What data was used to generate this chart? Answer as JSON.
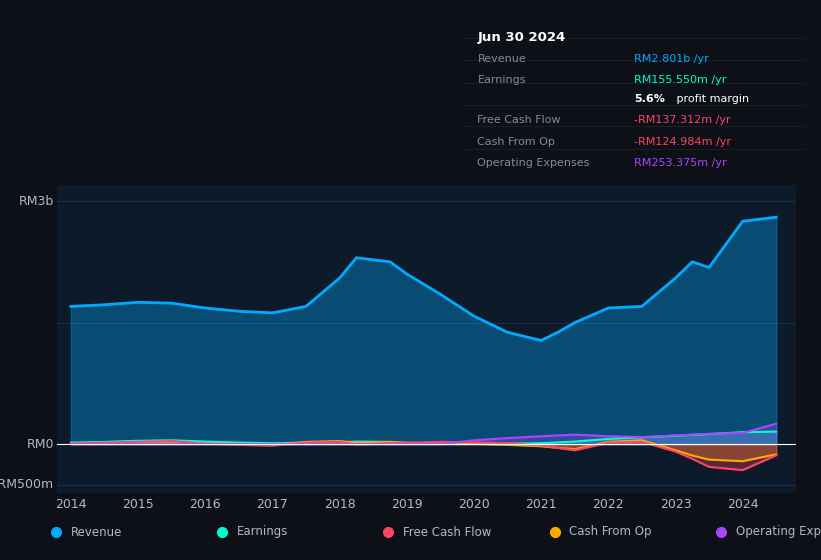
{
  "background_color": "#0d1117",
  "plot_bg_color": "#0d1a2a",
  "y_label_top": "RM3b",
  "y_label_bottom": "-RM500m",
  "y_label_zero": "RM0",
  "ylim": [
    -600,
    3200
  ],
  "years": [
    2014,
    2014.5,
    2015,
    2015.5,
    2016,
    2016.5,
    2017,
    2017.5,
    2018,
    2018.25,
    2018.75,
    2019,
    2019.5,
    2020,
    2020.5,
    2021,
    2021.25,
    2021.5,
    2022,
    2022.5,
    2023,
    2023.25,
    2023.5,
    2024,
    2024.5
  ],
  "revenue": [
    1700,
    1720,
    1750,
    1740,
    1680,
    1640,
    1620,
    1700,
    2050,
    2300,
    2250,
    2100,
    1850,
    1580,
    1380,
    1280,
    1380,
    1500,
    1680,
    1700,
    2050,
    2250,
    2180,
    2750,
    2801
  ],
  "earnings": [
    20,
    28,
    42,
    48,
    32,
    20,
    12,
    18,
    22,
    32,
    28,
    12,
    8,
    4,
    8,
    12,
    22,
    32,
    65,
    85,
    105,
    115,
    125,
    148,
    155
  ],
  "free_cash_flow": [
    8,
    18,
    28,
    38,
    5,
    -8,
    -18,
    18,
    28,
    -5,
    12,
    18,
    28,
    22,
    12,
    -15,
    -45,
    -75,
    18,
    28,
    -90,
    -180,
    -280,
    -320,
    -137
  ],
  "cash_from_op": [
    5,
    10,
    18,
    28,
    8,
    2,
    -8,
    28,
    38,
    18,
    28,
    18,
    8,
    5,
    -8,
    -25,
    -45,
    -62,
    28,
    48,
    -75,
    -140,
    -190,
    -210,
    -125
  ],
  "operating_expenses": [
    0,
    0,
    0,
    0,
    0,
    0,
    0,
    0,
    0,
    0,
    0,
    0,
    0,
    48,
    75,
    98,
    108,
    118,
    98,
    88,
    108,
    118,
    128,
    138,
    253
  ],
  "revenue_color": "#00aaff",
  "earnings_color": "#00ffcc",
  "free_cash_flow_color": "#ff4466",
  "cash_from_op_color": "#ffaa00",
  "operating_expenses_color": "#aa44ff",
  "revenue_fill_alpha": 0.35,
  "other_fill_alpha": 0.3,
  "grid_color": "#1e3a5f",
  "zero_line_color": "#ffffff",
  "text_color": "#aabbcc",
  "info_box": {
    "title": "Jun 30 2024",
    "rows": [
      {
        "label": "Revenue",
        "value": "RM2.801b /yr",
        "value_color": "#00aaff"
      },
      {
        "label": "Earnings",
        "value": "RM155.550m /yr",
        "value_color": "#00ffcc"
      },
      {
        "label": "",
        "value": "5.6% profit margin",
        "value_color": "#ffffff"
      },
      {
        "label": "Free Cash Flow",
        "value": "-RM137.312m /yr",
        "value_color": "#ff4466"
      },
      {
        "label": "Cash From Op",
        "value": "-RM124.984m /yr",
        "value_color": "#ff4466"
      },
      {
        "label": "Operating Expenses",
        "value": "RM253.375m /yr",
        "value_color": "#aa44ff"
      }
    ]
  },
  "legend_items": [
    {
      "label": "Revenue",
      "color": "#00aaff"
    },
    {
      "label": "Earnings",
      "color": "#00ffcc"
    },
    {
      "label": "Free Cash Flow",
      "color": "#ff4466"
    },
    {
      "label": "Cash From Op",
      "color": "#ffaa00"
    },
    {
      "label": "Operating Expenses",
      "color": "#aa44ff"
    }
  ]
}
